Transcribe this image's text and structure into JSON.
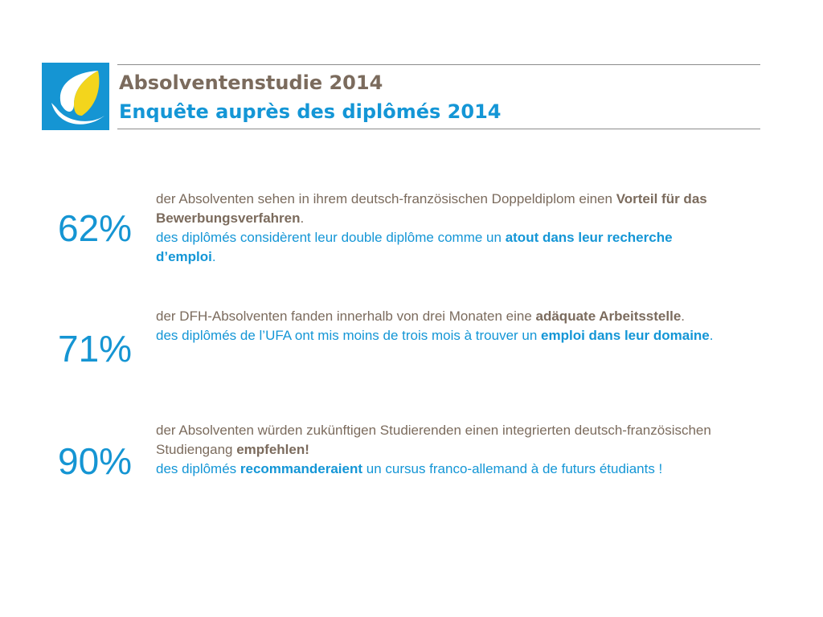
{
  "header": {
    "logo_icon": "dfh-ufa-logo-icon",
    "title": "Absolventenstudie 2014",
    "subtitle": "Enquête auprès des diplômés 2014"
  },
  "colors": {
    "logo_blue": "#1595d3",
    "logo_yellow": "#f3d51c",
    "german_text": "#7b6b5d",
    "french_text": "#1496d6",
    "percentage": "#1595d3"
  },
  "stats": [
    {
      "value": "62%",
      "de": {
        "before": "der Absolventen sehen in ihrem deutsch-französischen Doppeldiplom einen ",
        "strong": "Vorteil für das Bewerbungsverfahren",
        "after": "."
      },
      "fr": {
        "before": "des diplômés considèrent leur double diplôme comme un ",
        "strong": "atout dans leur recherche d’emploi",
        "after": "."
      }
    },
    {
      "value": "71%",
      "de": {
        "before": "der DFH-Absolventen fanden innerhalb von drei Monaten eine ",
        "strong": "adäquate Arbeitsstelle",
        "after": "."
      },
      "fr": {
        "before": "des diplômés de l’UFA ont mis moins de trois mois à trouver un ",
        "strong": "emploi dans leur domaine",
        "after": "."
      }
    },
    {
      "value": "90%",
      "de": {
        "before": "der Absolventen würden zukünftigen Studierenden einen integrierten deutsch-französischen Studiengang ",
        "strong": "empfehlen!",
        "after": ""
      },
      "fr": {
        "before": "des diplômés ",
        "strong": "recommanderaient",
        "after": " un cursus franco-allemand à de futurs étudiants !"
      }
    }
  ]
}
